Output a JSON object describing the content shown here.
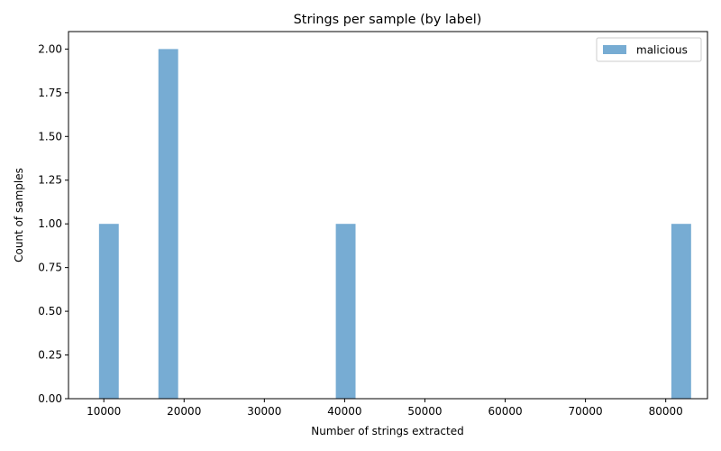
{
  "chart_data": {
    "type": "bar",
    "title": "Strings per sample (by label)",
    "xlabel": "Number of strings extracted",
    "ylabel": "Count of samples",
    "xlim": [
      5600,
      85200
    ],
    "ylim": [
      0,
      2.1
    ],
    "x_ticks": [
      10000,
      20000,
      30000,
      40000,
      50000,
      60000,
      70000,
      80000
    ],
    "y_ticks": [
      0.0,
      0.25,
      0.5,
      0.75,
      1.0,
      1.25,
      1.5,
      1.75,
      2.0
    ],
    "bin_width": 2460,
    "series": [
      {
        "name": "malicious",
        "color": "#77acd3",
        "bars": [
          {
            "x_start": 9400,
            "count": 1
          },
          {
            "x_start": 16800,
            "count": 2
          },
          {
            "x_start": 38900,
            "count": 1
          },
          {
            "x_start": 80700,
            "count": 1
          }
        ]
      }
    ],
    "legend": "top-right",
    "grid": false
  }
}
